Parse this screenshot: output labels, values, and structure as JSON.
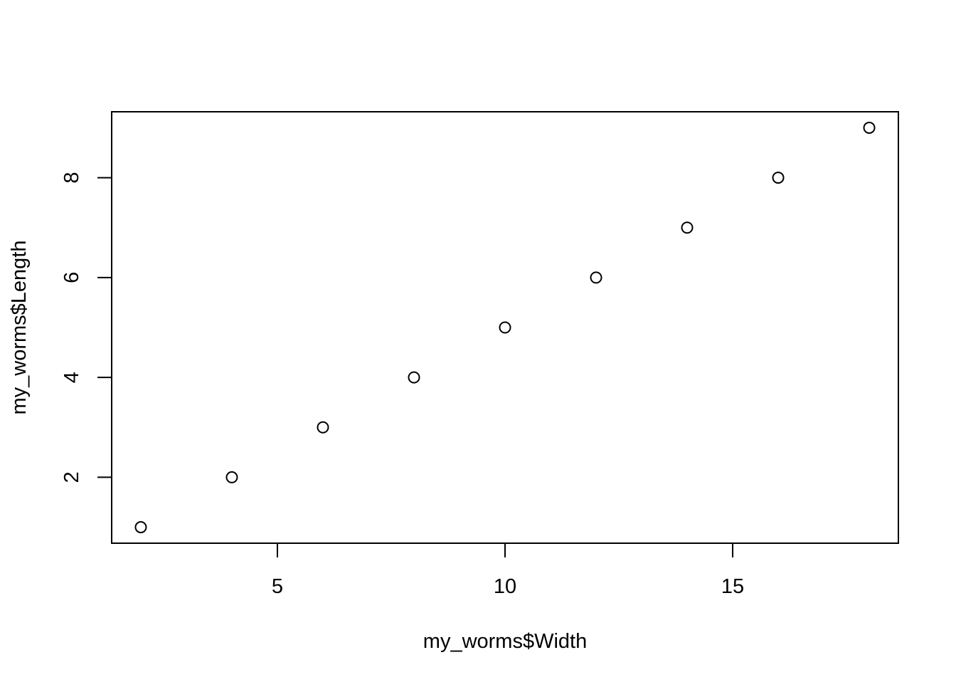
{
  "chart_data": {
    "type": "scatter",
    "title": "",
    "xlabel": "my_worms$Width",
    "ylabel": "my_worms$Length",
    "x": [
      2,
      4,
      6,
      8,
      10,
      12,
      14,
      16,
      18
    ],
    "y": [
      1,
      2,
      3,
      4,
      5,
      6,
      7,
      8,
      9
    ],
    "xlim": [
      1.36,
      18.64
    ],
    "ylim": [
      0.68,
      9.32
    ],
    "xticks": [
      5,
      10,
      15
    ],
    "yticks": [
      2,
      4,
      6,
      8
    ],
    "grid": false,
    "legend": "none",
    "marker": "open-circle",
    "colors": {
      "points": "#000000",
      "axes": "#000000",
      "background": "#ffffff"
    }
  }
}
